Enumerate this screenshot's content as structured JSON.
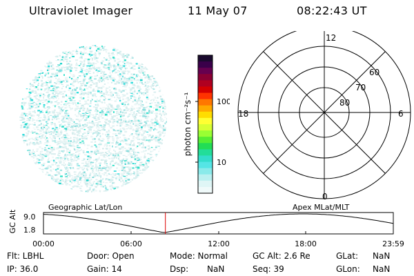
{
  "header": {
    "instrument": "Ultraviolet Imager",
    "date": "11 May 07",
    "time": "08:22:43 UT"
  },
  "colorbar": {
    "unit_label": "photon cm⁻²s⁻¹",
    "ticks": [
      "100",
      "10"
    ],
    "colors": [
      "#1a0a2e",
      "#3a004a",
      "#66004f",
      "#8a0033",
      "#b00020",
      "#d40000",
      "#ff3300",
      "#ff7700",
      "#ffaa00",
      "#ffdd00",
      "#ffff33",
      "#d8ff33",
      "#99ff33",
      "#55ee33",
      "#22dd55",
      "#22dd99",
      "#33ddcc",
      "#55e5e5",
      "#8aeaea",
      "#bbf0f0",
      "#dff6f6",
      "#f0fafa"
    ]
  },
  "polar": {
    "mlt_labels": {
      "top": "12",
      "left": "18",
      "right": "6",
      "bottom": "0"
    },
    "lat_labels": [
      "60",
      "70",
      "80"
    ]
  },
  "orbit": {
    "left_label": "Geographic Lat/Lon",
    "right_label": "Apex MLat/MLT",
    "axis_label": "GC Alt",
    "y_ticks": [
      "9.0",
      "1.8"
    ],
    "x_ticks": [
      "00:00",
      "06:00",
      "12:00",
      "18:00",
      "23:59"
    ],
    "marker_time": "08:22"
  },
  "info": {
    "flt": "Flt: LBHL",
    "ip": "IP: 36.0",
    "door": "Door: Open",
    "gain": "Gain: 14",
    "mode": "Mode: Normal",
    "dsp_label": "Dsp:",
    "dsp_value": "NaN",
    "gc_alt": "GC Alt: 2.6 Re",
    "seq": "Seq: 39",
    "glat_label": "GLat:",
    "glat_value": "NaN",
    "glon_label": "GLon:",
    "glon_value": "NaN"
  }
}
